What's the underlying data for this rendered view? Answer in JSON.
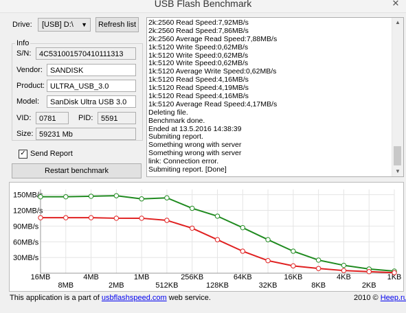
{
  "window": {
    "title": "USB Flash Benchmark",
    "close_glyph": "✕"
  },
  "drive": {
    "label": "Drive:",
    "value": "[USB] D:\\"
  },
  "refresh_button": "Refresh list",
  "info": {
    "group_title": "Info",
    "sn_label": "S/N:",
    "sn": "4C531001570410111313",
    "vendor_label": "Vendor:",
    "vendor": "SANDISK",
    "product_label": "Product:",
    "product": "ULTRA_USB_3.0",
    "model_label": "Model:",
    "model": "SanDisk Ultra USB 3.0",
    "vid_label": "VID:",
    "vid": "0781",
    "pid_label": "PID:",
    "pid": "5591",
    "size_label": "Size:",
    "size": "59231 Mb"
  },
  "send_report": {
    "label": "Send Report",
    "checked": true
  },
  "restart_button": "Restart benchmark",
  "log": [
    "2k:2560 Read Speed:7,92MB/s",
    "2k:2560 Read Speed:7,86MB/s",
    "2k:2560 Average Read Speed:7,88MB/s",
    "1k:5120 Write Speed:0,62MB/s",
    "1k:5120 Write Speed:0,62MB/s",
    "1k:5120 Write Speed:0,62MB/s",
    "1k:5120 Average Write Speed:0,62MB/s",
    "1k:5120 Read Speed:4,16MB/s",
    "1k:5120 Read Speed:4,19MB/s",
    "1k:5120 Read Speed:4,16MB/s",
    "1k:5120 Average Read Speed:4,17MB/s",
    "Deleting file.",
    "Benchmark done.",
    "Ended at 13.5.2016 14:38:39",
    "Submiting report.",
    "Something wrong with server",
    "Something wrong with server",
    "link: Connection error.",
    "Submiting report. [Done]"
  ],
  "chart_data": {
    "type": "line",
    "x": [
      "16MB",
      "8MB",
      "4MB",
      "2MB",
      "1MB",
      "512KB",
      "256KB",
      "128KB",
      "64KB",
      "32KB",
      "16KB",
      "8KB",
      "4KB",
      "2KB",
      "1KB"
    ],
    "ylim": [
      0,
      160
    ],
    "yticks": [
      "150MB/s",
      "120MB/s",
      "90MB/s",
      "60MB/s",
      "30MB/s"
    ],
    "ytick_values": [
      150,
      120,
      90,
      60,
      30
    ],
    "grid": true,
    "series": [
      {
        "color": "#1f8a1f",
        "values": [
          146,
          146,
          147,
          148,
          142,
          144,
          124,
          109,
          87,
          64,
          42,
          25,
          15,
          8,
          4
        ]
      },
      {
        "color": "#e02020",
        "values": [
          106,
          106,
          106,
          105,
          105,
          101,
          86,
          64,
          42,
          24,
          14,
          9,
          5,
          3,
          1
        ]
      }
    ]
  },
  "footer": {
    "prefix": "This application is a part of ",
    "link": "usbflashspeed.com",
    "suffix": " web service.",
    "copyright_year": "2010",
    "copyright_sep": " © ",
    "copyright_link": "Heep.ru"
  }
}
